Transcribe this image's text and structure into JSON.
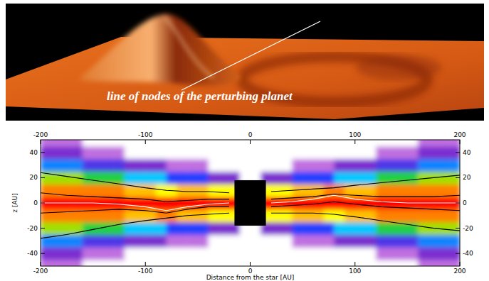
{
  "top_panel": {
    "annotation": "line of nodes of the perturbing planet"
  },
  "chart_data": {
    "type": "heatmap",
    "x_label": "Distance from the star [AU]",
    "y_label": "z [AU]",
    "xlim": [
      -200,
      200
    ],
    "ylim": [
      -50,
      50
    ],
    "xticks": [
      -200,
      -100,
      0,
      100,
      200
    ],
    "yticks": [
      -40,
      -20,
      0,
      20,
      40
    ],
    "x_bins": [
      -200,
      -190,
      -180,
      -170,
      -160,
      -150,
      -140,
      -130,
      -120,
      -110,
      -100,
      -90,
      -80,
      -70,
      -60,
      -50,
      -40,
      -30,
      -20,
      -10,
      0,
      10,
      20,
      30,
      40,
      50,
      60,
      70,
      80,
      90,
      100,
      110,
      120,
      130,
      140,
      150,
      160,
      170,
      180,
      190,
      200
    ],
    "z_bins": [
      -55,
      -45,
      -35,
      -25,
      -15,
      -5,
      5,
      15,
      25,
      35,
      45,
      55
    ],
    "cell_range": [
      0,
      10
    ],
    "cells": [
      [
        0.5,
        0.5,
        0.5,
        0.5,
        0,
        0,
        0,
        0,
        0,
        0,
        0,
        0,
        0,
        0,
        0,
        0,
        0,
        0,
        0,
        0,
        0,
        0,
        0,
        0,
        0,
        0,
        0,
        0,
        0,
        0,
        0,
        0,
        0,
        0,
        0,
        0,
        0.5,
        0.5,
        0.5,
        0.5
      ],
      [
        1,
        1,
        1,
        1,
        0.5,
        0.5,
        0.5,
        0.5,
        0,
        0,
        0,
        0,
        0,
        0,
        0,
        0,
        0,
        0,
        0,
        0,
        0,
        0,
        0,
        0,
        0,
        0,
        0,
        0,
        0,
        0,
        0,
        0,
        0.5,
        0.5,
        0.5,
        0.5,
        1,
        1,
        1,
        1
      ],
      [
        2.5,
        2.5,
        2.5,
        2.5,
        1.5,
        1.5,
        1.5,
        1.5,
        1,
        1,
        1,
        1,
        0.5,
        0.5,
        0.5,
        0.5,
        0,
        0,
        0,
        0,
        0,
        0,
        0,
        0,
        0.5,
        0.5,
        0.5,
        0.5,
        1,
        1,
        1,
        1,
        1.5,
        1.5,
        1.5,
        1.5,
        2.5,
        2.5,
        2.5,
        2.5
      ],
      [
        5,
        5,
        5,
        5,
        4,
        4,
        4,
        4,
        3,
        3,
        3,
        3,
        2,
        2,
        2,
        2,
        1,
        1,
        1,
        0,
        0,
        1,
        1,
        1,
        2,
        2,
        2,
        2,
        3,
        3,
        3,
        3,
        4,
        4,
        4,
        4,
        5,
        5,
        5,
        5
      ],
      [
        8,
        8,
        8,
        8,
        8,
        8,
        8,
        8,
        7,
        7,
        7,
        8,
        8,
        7,
        7,
        7,
        6,
        6,
        6,
        0,
        0,
        6,
        6,
        6,
        7,
        7,
        7,
        6,
        6,
        7,
        7,
        7,
        8,
        8,
        8,
        8,
        8,
        8,
        8,
        8
      ],
      [
        10,
        10,
        10,
        10,
        10,
        10,
        10,
        10,
        10,
        10,
        10,
        10,
        10,
        10,
        10,
        10,
        10,
        10,
        10,
        0,
        0,
        10,
        10,
        10,
        10,
        10,
        10,
        10,
        10,
        10,
        10,
        10,
        10,
        10,
        10,
        10,
        10,
        10,
        10,
        10
      ],
      [
        8,
        8,
        8,
        8,
        8,
        8,
        8,
        8,
        7,
        7,
        7,
        6,
        6,
        7,
        7,
        7,
        6,
        6,
        6,
        0,
        0,
        6,
        6,
        6,
        7,
        7,
        7,
        8,
        8,
        7,
        7,
        7,
        8,
        8,
        8,
        8,
        8,
        8,
        8,
        8
      ],
      [
        5,
        5,
        5,
        5,
        4,
        4,
        4,
        4,
        3,
        3,
        3,
        3,
        2,
        2,
        2,
        2,
        1,
        1,
        1,
        0,
        0,
        1,
        1,
        1,
        2,
        2,
        2,
        2,
        3,
        3,
        3,
        3,
        4,
        4,
        4,
        4,
        5,
        5,
        5,
        5
      ],
      [
        2.5,
        2.5,
        2.5,
        2.5,
        1.5,
        1.5,
        1.5,
        1.5,
        1,
        1,
        1,
        1,
        0.5,
        0.5,
        0.5,
        0.5,
        0,
        0,
        0,
        0,
        0,
        0,
        0,
        0,
        0.5,
        0.5,
        0.5,
        0.5,
        1,
        1,
        1,
        1,
        1.5,
        1.5,
        1.5,
        1.5,
        2.5,
        2.5,
        2.5,
        2.5
      ],
      [
        1,
        1,
        1,
        1,
        0.5,
        0.5,
        0.5,
        0.5,
        0,
        0,
        0,
        0,
        0,
        0,
        0,
        0,
        0,
        0,
        0,
        0,
        0,
        0,
        0,
        0,
        0,
        0,
        0,
        0,
        0,
        0,
        0,
        0,
        0.5,
        0.5,
        0.5,
        0.5,
        1,
        1,
        1,
        1
      ],
      [
        0.5,
        0.5,
        0.5,
        0.5,
        0,
        0,
        0,
        0,
        0,
        0,
        0,
        0,
        0,
        0,
        0,
        0,
        0,
        0,
        0,
        0,
        0,
        0,
        0,
        0,
        0,
        0,
        0,
        0,
        0,
        0,
        0,
        0,
        0,
        0,
        0,
        0,
        0.5,
        0.5,
        0.5,
        0.5
      ]
    ],
    "hole_x": [
      -15,
      15
    ],
    "hole_z": [
      -18,
      18
    ],
    "x": [
      -200,
      -175,
      -150,
      -125,
      -100,
      -80,
      -60,
      -40,
      -20,
      0,
      20,
      40,
      60,
      80,
      100,
      125,
      150,
      175,
      200
    ],
    "series": [
      {
        "color": "#000000",
        "values": [
          24,
          21,
          18,
          15,
          12,
          10,
          9,
          9,
          8,
          null,
          9,
          10,
          11,
          12,
          14,
          16,
          18,
          20,
          22
        ]
      },
      {
        "color": "#000000",
        "values": [
          -28,
          -25,
          -21,
          -17,
          -14,
          -12,
          -10,
          -9,
          -8,
          null,
          -8,
          -8,
          -8,
          -9,
          -11,
          -14,
          -17,
          -20,
          -22
        ]
      },
      {
        "color": "#000000",
        "values": [
          8,
          6,
          5,
          4,
          3,
          1,
          2,
          3,
          3,
          null,
          3,
          4,
          5,
          7,
          6,
          5,
          5,
          5,
          6
        ]
      },
      {
        "color": "#000000",
        "values": [
          -8,
          -7,
          -6,
          -5,
          -6,
          -8,
          -5,
          -3,
          -3,
          null,
          -3,
          -2,
          -1,
          1,
          -1,
          -3,
          -4,
          -5,
          -6
        ]
      },
      {
        "color": "#ffffff",
        "values": [
          0,
          0,
          0,
          -1,
          -3,
          -6,
          -3,
          -1,
          0,
          null,
          0,
          1,
          3,
          6,
          3,
          1,
          0,
          0,
          0
        ]
      }
    ]
  }
}
